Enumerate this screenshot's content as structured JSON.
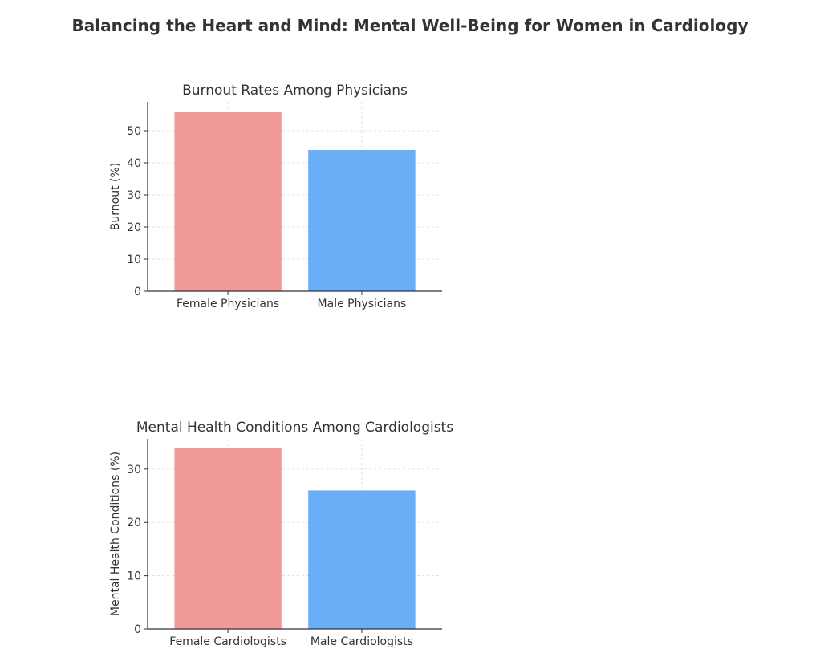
{
  "figure": {
    "suptitle": "Balancing the Heart and Mind: Mental Well-Being for Women in Cardiology"
  },
  "chart_data": [
    {
      "type": "bar",
      "title": "Burnout Rates Among Physicians",
      "xlabel": "",
      "ylabel": "Burnout (%)",
      "categories": [
        "Female Physicians",
        "Male Physicians"
      ],
      "values": [
        56,
        44
      ],
      "colors": [
        "#f09a9a",
        "#6aaef8"
      ],
      "ylim": [
        0,
        59
      ],
      "yticks": [
        0,
        10,
        20,
        30,
        40,
        50
      ],
      "grid": true
    },
    {
      "type": "bar",
      "title": "Mental Health Conditions Among Cardiologists",
      "xlabel": "",
      "ylabel": "Mental Health Conditions (%)",
      "categories": [
        "Female Cardiologists",
        "Male Cardiologists"
      ],
      "values": [
        34,
        26
      ],
      "colors": [
        "#f09a9a",
        "#6aaef8"
      ],
      "ylim": [
        0,
        35.7
      ],
      "yticks": [
        0,
        10,
        20,
        30
      ],
      "grid": true
    }
  ]
}
